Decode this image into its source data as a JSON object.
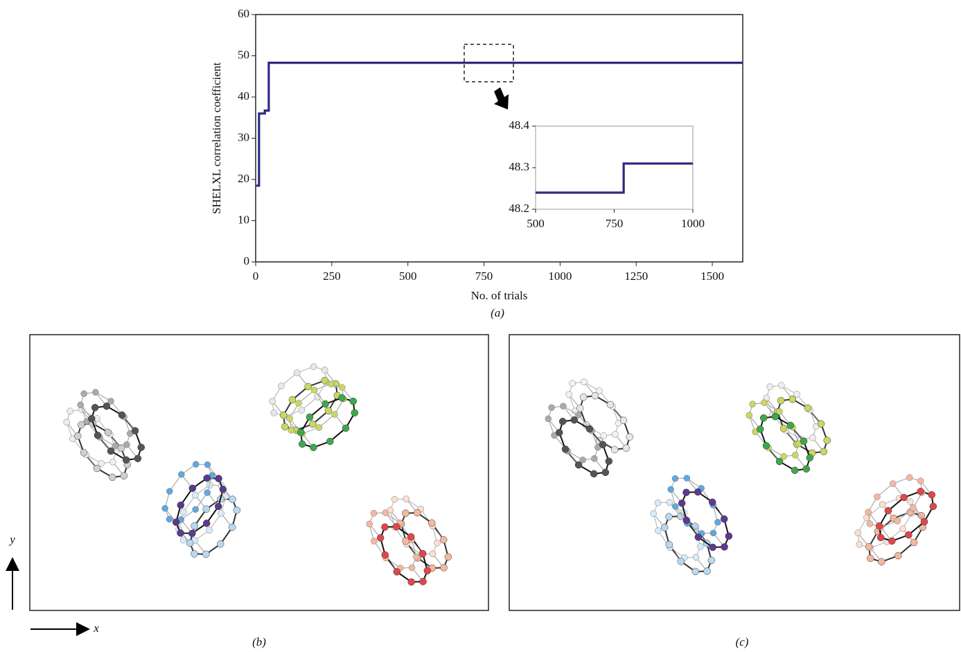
{
  "chart_data": [
    {
      "type": "step",
      "xlabel": "No. of trials",
      "ylabel": "SHELXL correlation coefficient",
      "x": [
        2,
        11,
        30,
        43,
        1600
      ],
      "series": [
        {
          "color": "#2e2a80",
          "values": [
            18.5,
            18.5,
            36,
            36.7,
            48.3
          ]
        }
      ],
      "xlim": [
        0,
        1600
      ],
      "ylim": [
        0,
        60
      ],
      "xticks": [
        0,
        250,
        500,
        750,
        1000,
        1250,
        1500
      ],
      "yticks": [
        0,
        10,
        20,
        30,
        40,
        50,
        60
      ]
    },
    {
      "type": "step",
      "x": [
        500,
        780,
        1000
      ],
      "series": [
        {
          "color": "#2e2a80",
          "values": [
            48.24,
            48.24,
            48.31
          ]
        }
      ],
      "xlim": [
        500,
        1000
      ],
      "ylim": [
        48.2,
        48.4
      ],
      "xticks": [
        500,
        750,
        1000
      ],
      "yticks": [
        48.2,
        48.3,
        48.4
      ]
    }
  ],
  "figure": {
    "panel_labels": [
      "(a)",
      "(b)",
      "(c)"
    ],
    "axis_labels": {
      "x": "x",
      "y": "y"
    }
  }
}
